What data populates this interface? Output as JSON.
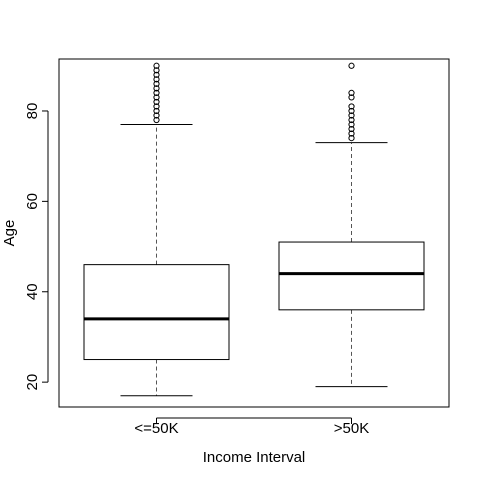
{
  "chart_data": {
    "type": "boxplot",
    "title": "",
    "xlabel": "Income Interval",
    "ylabel": "Age",
    "categories": [
      "<=50K",
      ">50K"
    ],
    "boxes": [
      {
        "category": "<=50K",
        "whisker_low": 17,
        "q1": 25,
        "median": 34,
        "q3": 46,
        "whisker_high": 77,
        "outliers": [
          78,
          79,
          80,
          81,
          82,
          83,
          84,
          85,
          86,
          87,
          88,
          89,
          90
        ]
      },
      {
        "category": ">50K",
        "whisker_low": 19,
        "q1": 36,
        "median": 44,
        "q3": 51,
        "whisker_high": 73,
        "outliers": [
          74,
          75,
          76,
          77,
          78,
          79,
          80,
          81,
          83,
          84,
          90
        ]
      }
    ],
    "yticks": [
      20,
      40,
      60,
      80
    ],
    "ylim": [
      14.5,
      91.5
    ],
    "grid": false,
    "colors": {
      "box_fill": "#ffffff",
      "stroke": "#000000",
      "whisker": "#555555"
    }
  }
}
